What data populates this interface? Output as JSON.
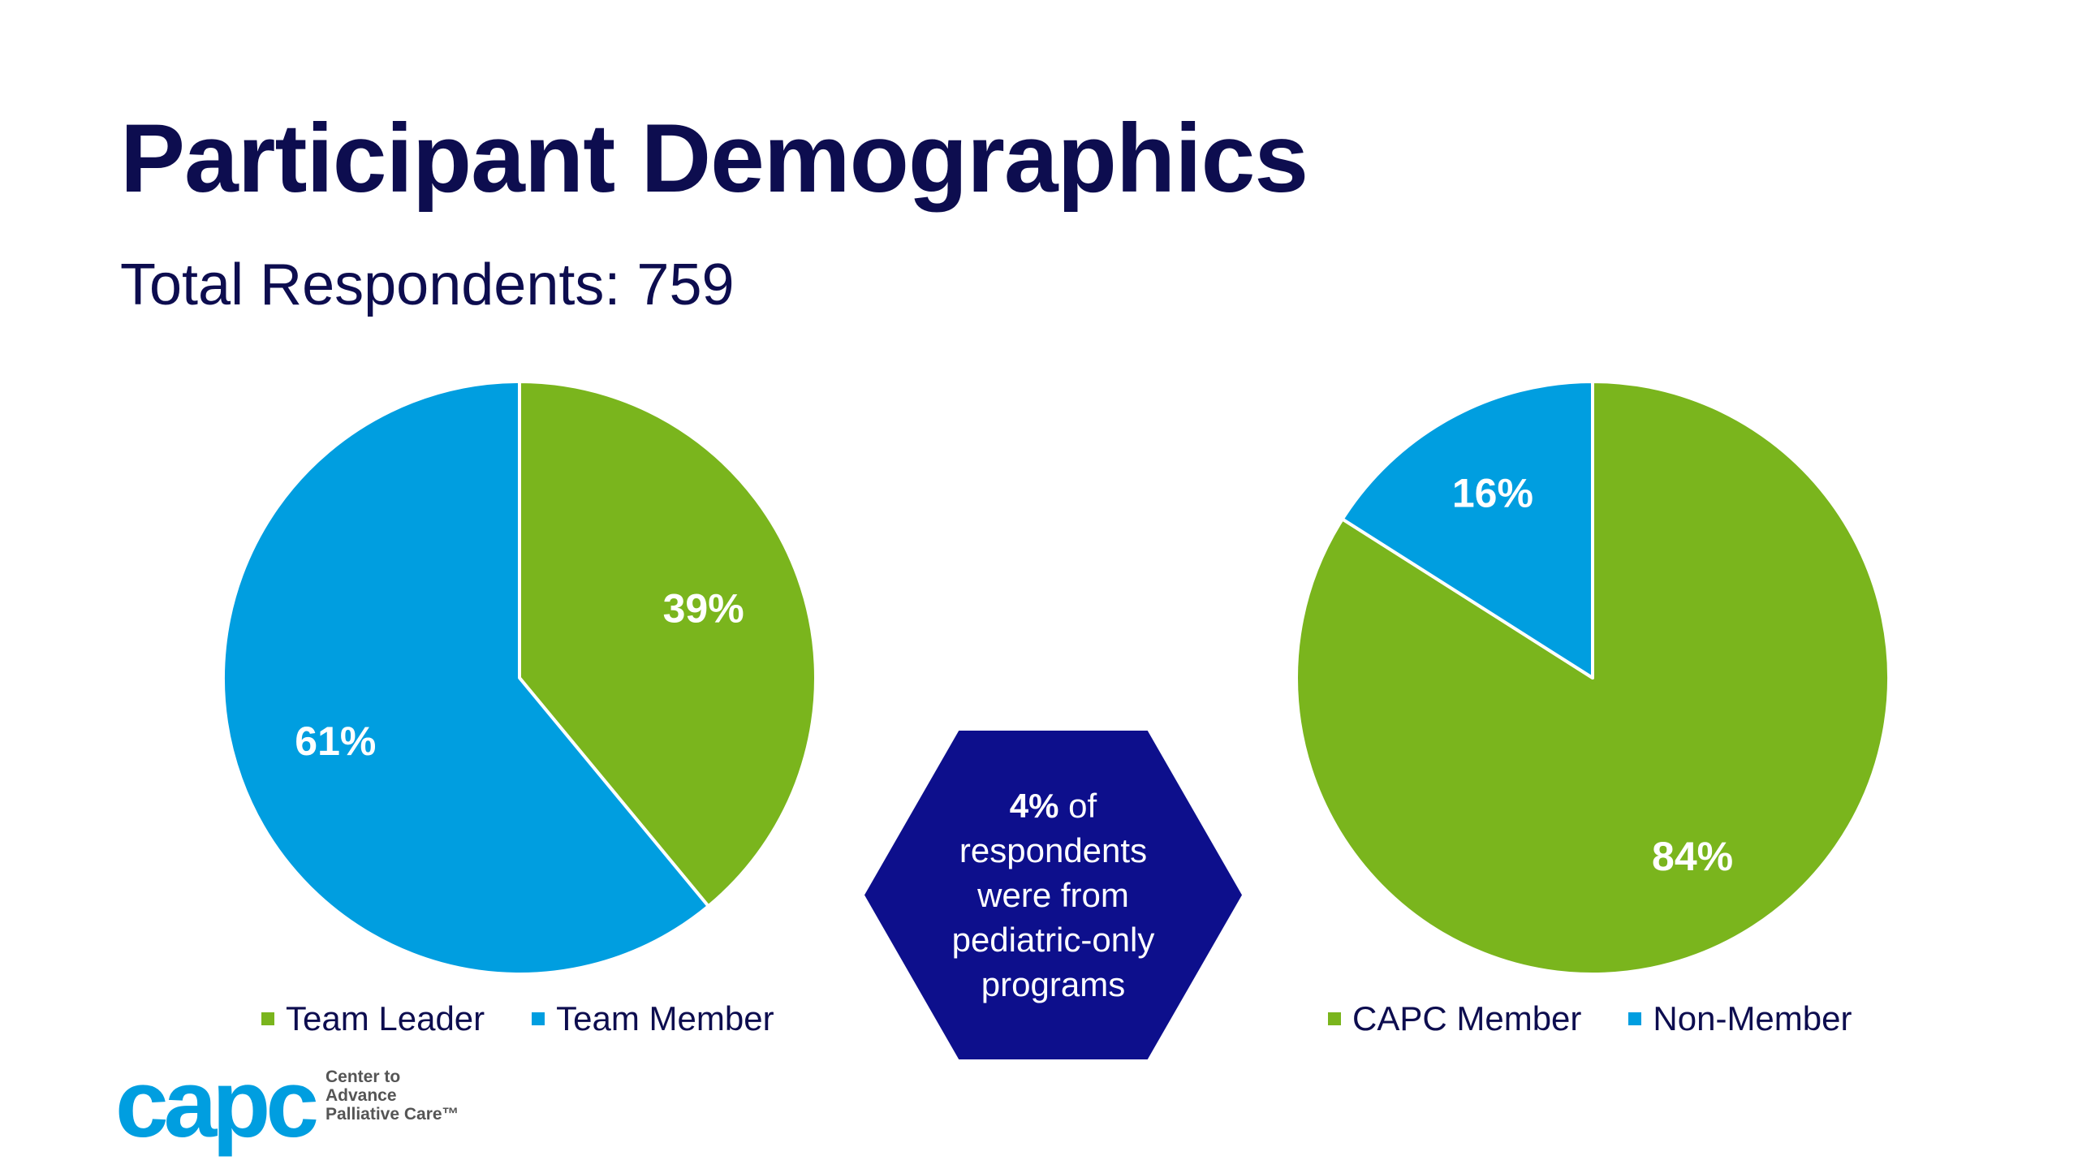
{
  "slide": {
    "title": "Participant Demographics",
    "subtitle": "Total Respondents: 759"
  },
  "colors": {
    "green": "#7ab51d",
    "blue": "#009ee0",
    "navy": "#0d0f8c",
    "title": "#0d0d4f"
  },
  "chart_data": [
    {
      "type": "pie",
      "title": "",
      "slices": [
        {
          "label": "Team Leader",
          "value": 39,
          "display": "39%",
          "color": "#7ab51d"
        },
        {
          "label": "Team Member",
          "value": 61,
          "display": "61%",
          "color": "#009ee0"
        }
      ],
      "legend": [
        "Team Leader",
        "Team Member"
      ],
      "legend_position": "bottom"
    },
    {
      "type": "pie",
      "title": "",
      "slices": [
        {
          "label": "CAPC Member",
          "value": 84,
          "display": "84%",
          "color": "#7ab51d"
        },
        {
          "label": "Non-Member",
          "value": 16,
          "display": "16%",
          "color": "#009ee0"
        }
      ],
      "legend": [
        "CAPC Member",
        "Non-Member"
      ],
      "legend_position": "bottom"
    }
  ],
  "callout": {
    "highlight": "4%",
    "line1_rest": " of",
    "line2": "respondents",
    "line3": "were from",
    "line4": "pediatric-only",
    "line5": "programs"
  },
  "logo": {
    "wordmark": "capc",
    "tagline_1": "Center to",
    "tagline_2": "Advance",
    "tagline_3": "Palliative Care™"
  }
}
